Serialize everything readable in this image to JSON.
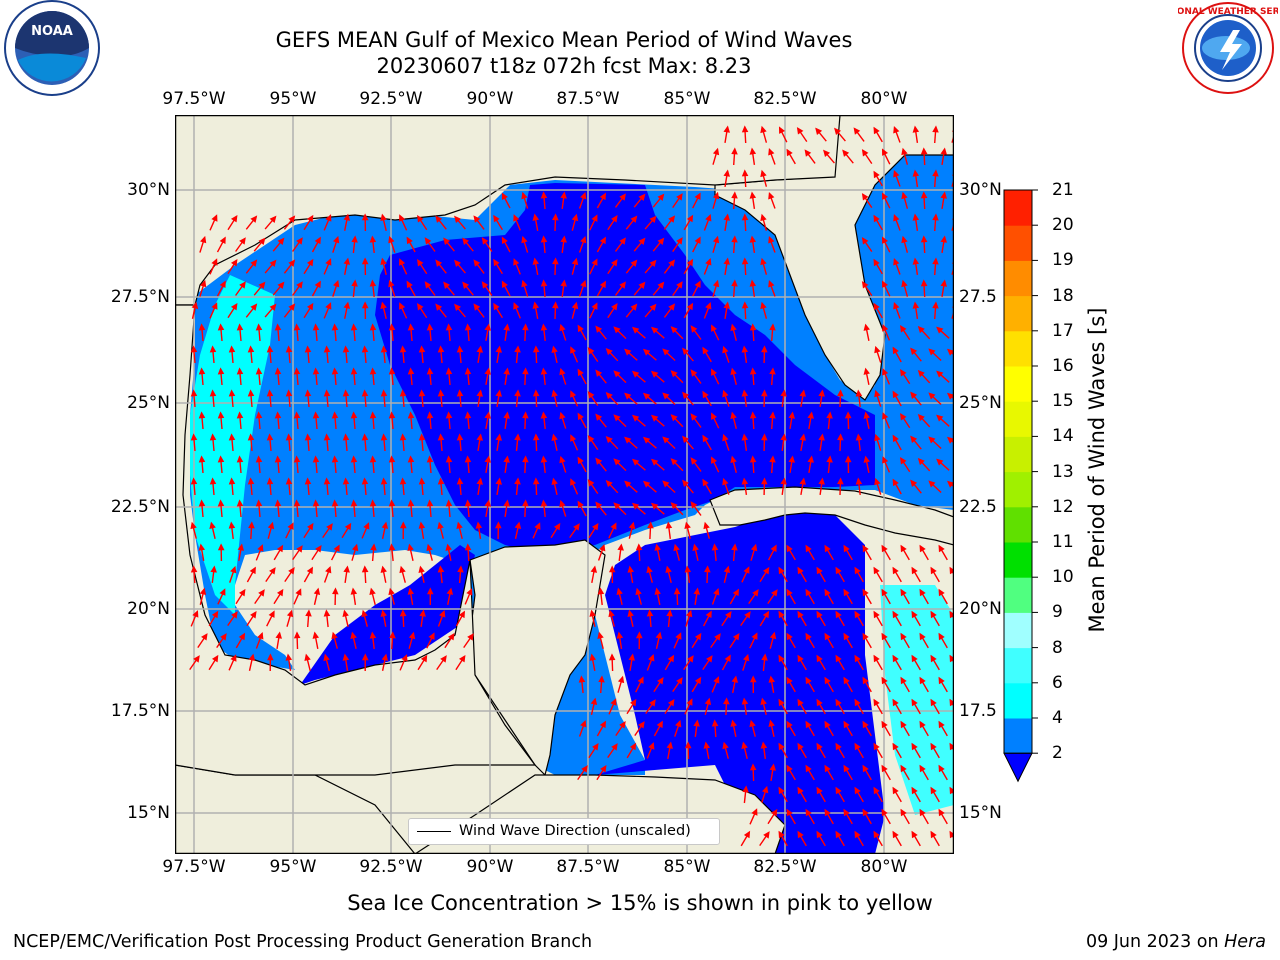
{
  "title": {
    "line1": "GEFS MEAN Gulf of Mexico Mean Period of Wind Waves",
    "line2": "20230607 t18z 072h fcst   Max: 8.23"
  },
  "logos": {
    "left": {
      "name": "noaa-logo",
      "text": "NOAA"
    },
    "right": {
      "name": "national-weather-service-logo",
      "text": "NATIONAL WEATHER SERVICE"
    }
  },
  "map": {
    "lon_ticks": [
      "97.5°W",
      "95°W",
      "92.5°W",
      "90°W",
      "87.5°W",
      "85°W",
      "82.5°W",
      "80°W"
    ],
    "lat_ticks_left": [
      "30°N",
      "27.5°N",
      "25°N",
      "22.5°N",
      "20°N",
      "17.5°N",
      "15°N"
    ],
    "lat_ticks_right": [
      "30°N",
      "27.5",
      "25°N",
      "22.5",
      "20°N",
      "17.5",
      "15°N"
    ],
    "legend_label": "Wind Wave Direction (unscaled)",
    "colors": {
      "land": "#efeedc",
      "deep": "#0000ff",
      "mid": "#0080ff",
      "shallow": "#00ffff",
      "arrow": "#ff0000"
    }
  },
  "colorbar": {
    "title": "Mean Period of Wind Waves [s]",
    "tick_labels": [
      "2",
      "4",
      "6",
      "8",
      "9",
      "10",
      "11",
      "12",
      "13",
      "14",
      "15",
      "16",
      "17",
      "18",
      "19",
      "20",
      "21"
    ],
    "colors": [
      "#0080ff",
      "#00ffff",
      "#40ffff",
      "#a0ffff",
      "#50ff80",
      "#00e000",
      "#60e000",
      "#a0f000",
      "#c8f000",
      "#e8f800",
      "#ffff00",
      "#ffe000",
      "#ffb000",
      "#ff8c00",
      "#ff5000",
      "#ff2000",
      "#ff0000"
    ]
  },
  "subtitle": "Sea Ice Concentration > 15% is shown in pink to yellow",
  "footer": {
    "left": "NCEP/EMC/Verification Post Processing Product Generation Branch",
    "right_prefix": "09 Jun 2023 on ",
    "right_host": "Hera"
  }
}
